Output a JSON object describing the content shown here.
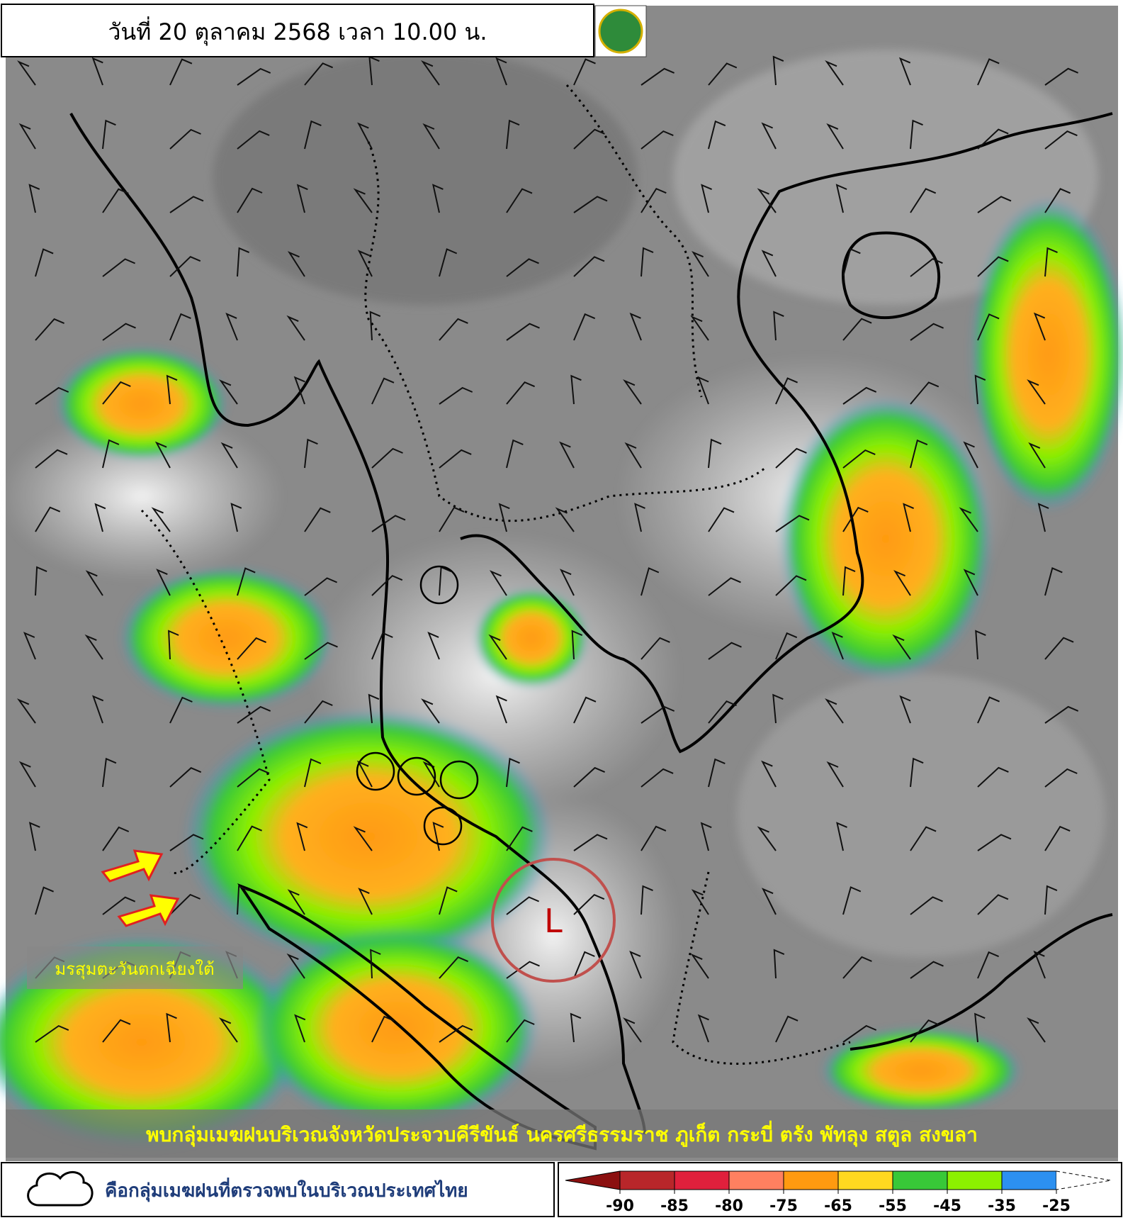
{
  "header": {
    "title": "วันที่ 20 ตุลาคม 2568 เวลา 10.00 น."
  },
  "map": {
    "monsoon_label": "มรสุมตะวันตกเฉียงใต้",
    "low_label": "L",
    "banner": "พบกลุ่มเมฆฝนบริเวณจังหวัดประจวบคีรีขันธ์ นครศรีธรรมราช ภูเก็ต กระบี่ ตรัง พัทลุง สตูล สงขลา"
  },
  "legend": {
    "text": "คือกลุ่มเมฆฝนที่ตรวจพบในบริเวณประเทศไทย"
  },
  "color_scale": {
    "colors": [
      "#8b1010",
      "#b8262a",
      "#e0203c",
      "#ff8060",
      "#ff9a10",
      "#ffd820",
      "#38c838",
      "#8cf000",
      "#2c90f0",
      "#ffffff"
    ],
    "ticks": [
      -90,
      -85,
      -80,
      -75,
      -65,
      -55,
      -45,
      -35,
      -25
    ]
  }
}
